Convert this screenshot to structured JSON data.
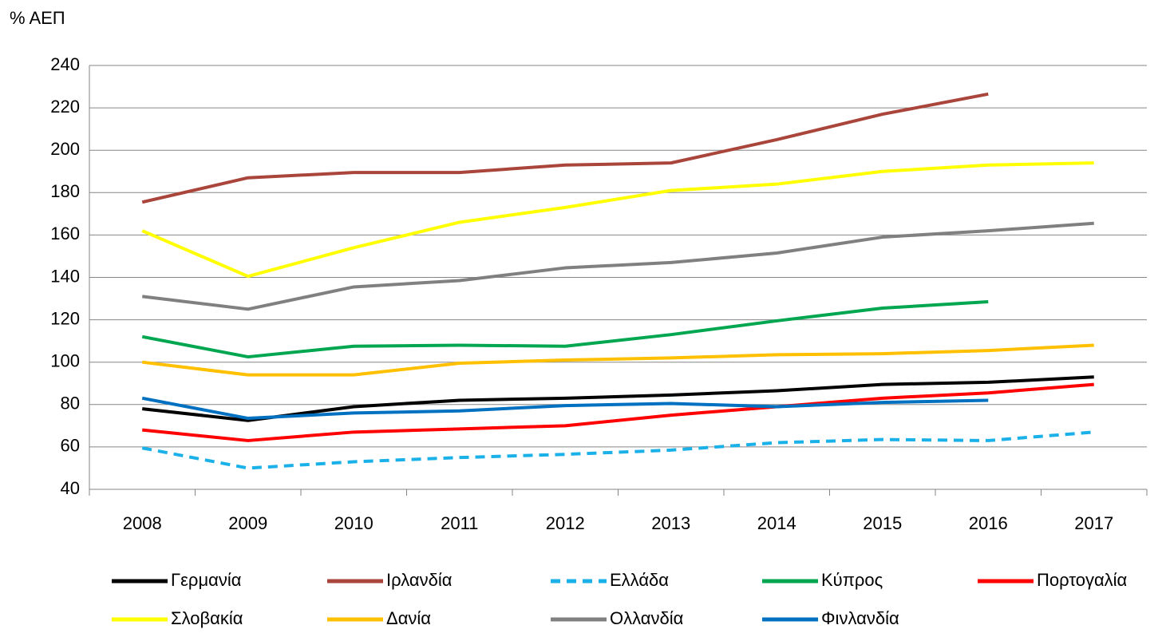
{
  "chart_data": {
    "type": "line",
    "y_label": "% ΑΕΠ",
    "categories": [
      "2008",
      "2009",
      "2010",
      "2011",
      "2012",
      "2013",
      "2014",
      "2015",
      "2016",
      "2017"
    ],
    "ylim": [
      40,
      240
    ],
    "yticks": [
      40,
      60,
      80,
      100,
      120,
      140,
      160,
      180,
      200,
      220,
      240
    ],
    "grid": true,
    "series": [
      {
        "name": "Γερμανία",
        "color": "#000000",
        "values": [
          78,
          72.5,
          79,
          82,
          83,
          84.5,
          86.5,
          89.5,
          90.5,
          93
        ]
      },
      {
        "name": "Ιρλανδία",
        "color": "#a9453b",
        "values": [
          175.5,
          187,
          189.5,
          189.5,
          193,
          194,
          205,
          217,
          226.5,
          null
        ]
      },
      {
        "name": "Ελλάδα",
        "color": "#1ab0e8",
        "dashed": true,
        "values": [
          59.5,
          50,
          53,
          55,
          56.5,
          58.5,
          62,
          63.5,
          63,
          67
        ]
      },
      {
        "name": "Κύπρος",
        "color": "#00a650",
        "values": [
          112,
          102.5,
          107.5,
          108,
          107.5,
          113,
          119.5,
          125.5,
          128.5,
          null
        ]
      },
      {
        "name": "Πορτογαλία",
        "color": "#ff0000",
        "values": [
          68,
          63,
          67,
          68.5,
          70,
          75,
          79,
          83,
          85.5,
          89.5
        ]
      },
      {
        "name": "Σλοβακία",
        "color": "#ffff00",
        "values": [
          162,
          140.5,
          154,
          166,
          173,
          181,
          184,
          190,
          193,
          194
        ]
      },
      {
        "name": "Δανία",
        "color": "#ffc000",
        "values": [
          100,
          94,
          94,
          99.5,
          101,
          102,
          103.5,
          104,
          105.5,
          108
        ]
      },
      {
        "name": "Ολλανδία",
        "color": "#808080",
        "values": [
          131,
          125,
          135.5,
          138.5,
          144.5,
          147,
          151.5,
          159,
          162,
          165.5
        ]
      },
      {
        "name": "Φινλανδία",
        "color": "#0070c0",
        "values": [
          83,
          73.5,
          76,
          77,
          79.5,
          80.5,
          79,
          81,
          82,
          null
        ]
      }
    ]
  }
}
